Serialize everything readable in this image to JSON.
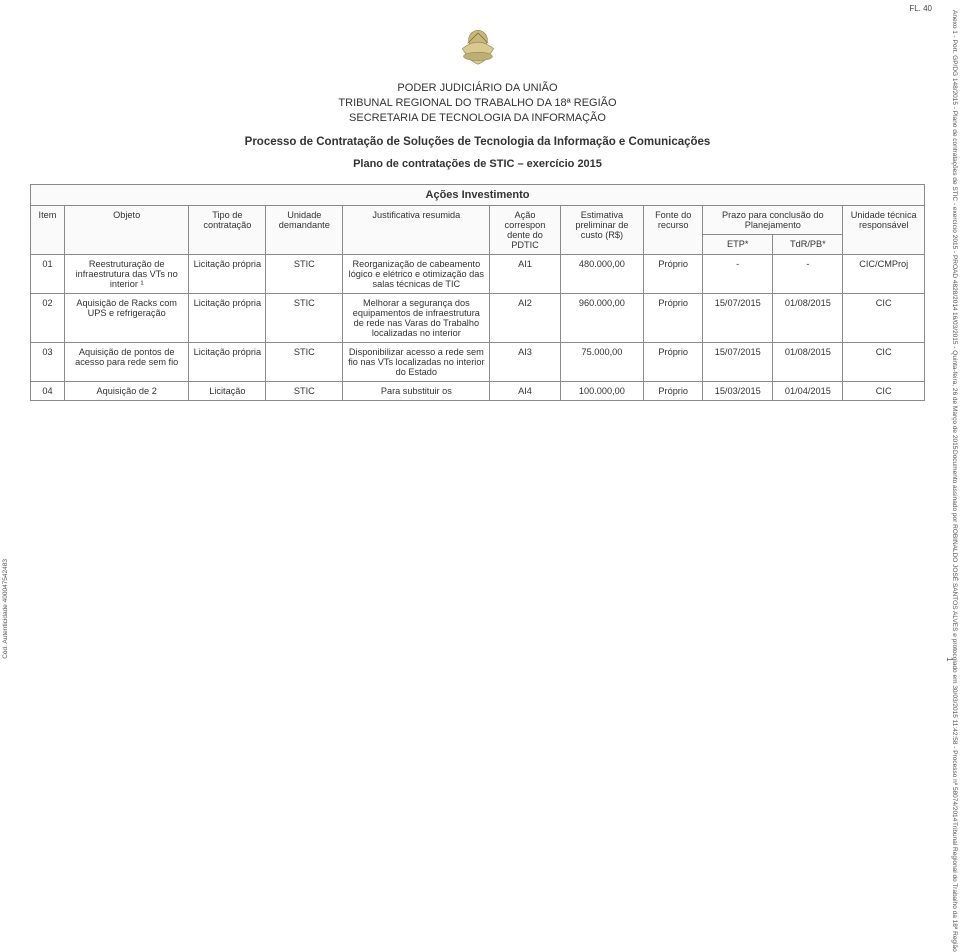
{
  "page_label": "FL. 40",
  "side_right": {
    "line1": "Anexo 1 - Port. GP/DG 148/2015 - Plano de contratações de STIC - exercício 2015 - PROAD 4828/2014",
    "line2": "16/03/2015 - Quinta-feira, 26 de Março de 2015",
    "line3": "Documento assinado por ROBINALDO JOSÉ SANTOS ALVES e protocolado em 30/03/2015 11:42:58 - Processo nº 58074/2014",
    "line4": "Tribunal Regional do Trabalho da 18ª Região"
  },
  "side_left": "Cód. Autenticidade 400047542483",
  "page_number": "1",
  "header": {
    "org1": "PODER JUDICIÁRIO DA UNIÃO",
    "org2": "TRIBUNAL REGIONAL DO TRABALHO DA 18ª REGIÃO",
    "org3": "SECRETARIA DE TECNOLOGIA DA INFORMAÇÃO",
    "process": "Processo de Contratação de Soluções de Tecnologia da Informação e Comunicações",
    "plan": "Plano de contratações de STIC – exercício 2015"
  },
  "table": {
    "section_title": "Ações Investimento",
    "headers": {
      "item": "Item",
      "objeto": "Objeto",
      "tipo": "Tipo de contratação",
      "unidade_dem": "Unidade demandante",
      "justificativa": "Justificativa resumida",
      "acao": "Ação correspon dente do PDTIC",
      "estimativa": "Estimativa preliminar de custo (R$)",
      "fonte": "Fonte do recurso",
      "prazo": "Prazo para conclusão do Planejamento",
      "etp": "ETP*",
      "tdr": "TdR/PB*",
      "resp": "Unidade técnica responsável"
    },
    "rows": [
      {
        "item": "01",
        "objeto": "Reestruturação de infraestrutura das VTs no interior ¹",
        "tipo": "Licitação própria",
        "unidade_dem": "STIC",
        "justificativa": "Reorganização de cabeamento lógico e elétrico e otimização das salas técnicas de TIC",
        "acao": "AI1",
        "estimativa": "480.000,00",
        "fonte": "Próprio",
        "etp": "-",
        "tdr": "-",
        "resp": "CIC/CMProj"
      },
      {
        "item": "02",
        "objeto": "Aquisição de Racks com UPS e refrigeração",
        "tipo": "Licitação própria",
        "unidade_dem": "STIC",
        "justificativa": "Melhorar a segurança dos equipamentos de infraestrutura de rede nas Varas do Trabalho localizadas no interior",
        "acao": "AI2",
        "estimativa": "960.000,00",
        "fonte": "Próprio",
        "etp": "15/07/2015",
        "tdr": "01/08/2015",
        "resp": "CIC"
      },
      {
        "item": "03",
        "objeto": "Aquisição de pontos de acesso para rede sem fio",
        "tipo": "Licitação própria",
        "unidade_dem": "STIC",
        "justificativa": "Disponibilizar acesso a rede sem fio nas VTs localizadas no interior do Estado",
        "acao": "AI3",
        "estimativa": "75.000,00",
        "fonte": "Próprio",
        "etp": "15/07/2015",
        "tdr": "01/08/2015",
        "resp": "CIC"
      },
      {
        "item": "04",
        "objeto": "Aquisição de 2",
        "tipo": "Licitação",
        "unidade_dem": "STIC",
        "justificativa": "Para substituir os",
        "acao": "AI4",
        "estimativa": "100.000,00",
        "fonte": "Próprio",
        "etp": "15/03/2015",
        "tdr": "01/04/2015",
        "resp": "CIC"
      }
    ]
  },
  "styling": {
    "border_color": "#8a8a8a",
    "header_bg": "#fafafa",
    "text_color": "#333333",
    "font_size_body": 9.2,
    "font_size_header": 11
  }
}
